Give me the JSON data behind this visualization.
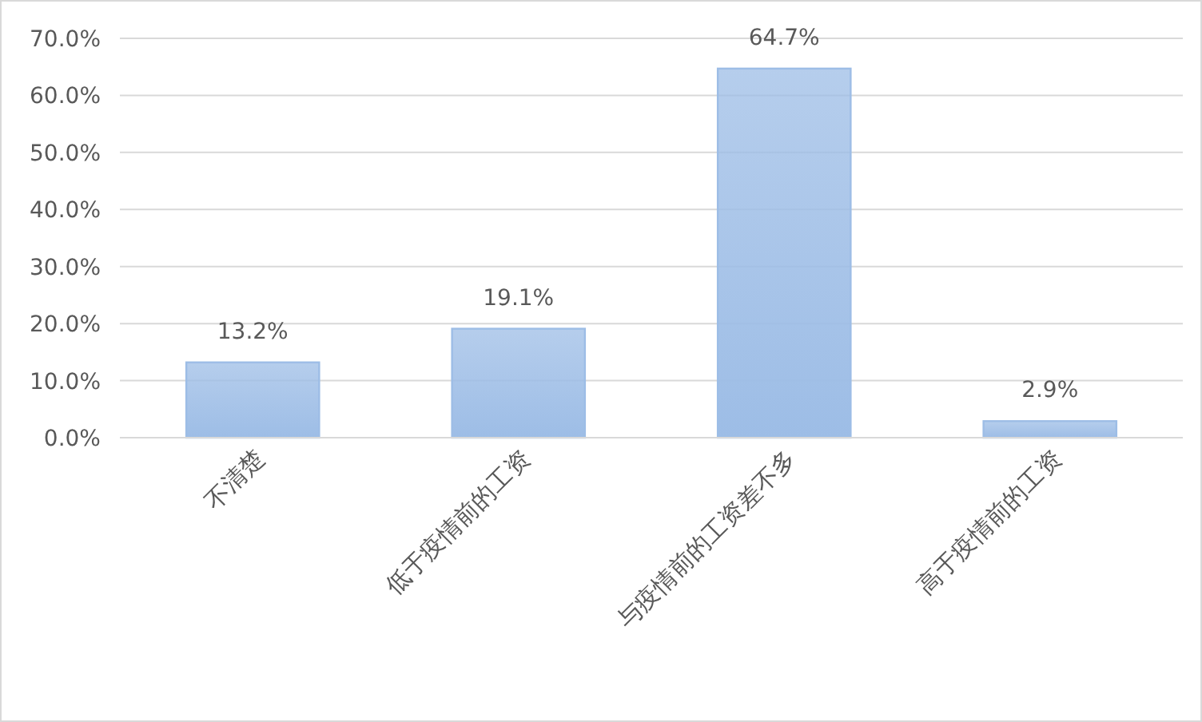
{
  "chart_data": {
    "type": "bar",
    "categories": [
      "不清楚",
      "低于疫情前的工资",
      "与疫情前的工资差不多",
      "高于疫情前的工资"
    ],
    "values": [
      13.2,
      19.1,
      64.7,
      2.9
    ],
    "value_labels": [
      "13.2%",
      "19.1%",
      "64.7%",
      "2.9%"
    ],
    "color": "#9dbde6",
    "ylim": [
      0,
      70
    ],
    "yticks": [
      {
        "value": 0,
        "label": "0.0%"
      },
      {
        "value": 10,
        "label": "10.0%"
      },
      {
        "value": 20,
        "label": "20.0%"
      },
      {
        "value": 30,
        "label": "30.0%"
      },
      {
        "value": 40,
        "label": "40.0%"
      },
      {
        "value": 50,
        "label": "50.0%"
      },
      {
        "value": 60,
        "label": "60.0%"
      },
      {
        "value": 70,
        "label": "70.0%"
      }
    ],
    "grid": "y"
  }
}
